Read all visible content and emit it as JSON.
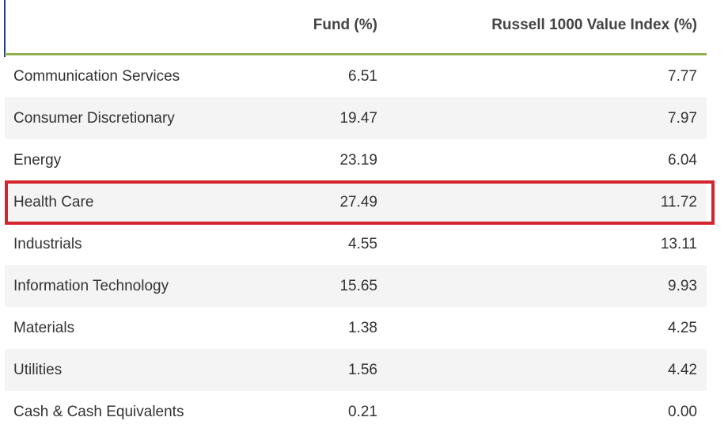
{
  "table": {
    "headers": {
      "sector": "",
      "fund": "Fund (%)",
      "index": "Russell 1000 Value Index (%)"
    },
    "rows": [
      {
        "sector": "Communication Services",
        "fund": "6.51",
        "index": "7.77"
      },
      {
        "sector": "Consumer Discretionary",
        "fund": "19.47",
        "index": "7.97"
      },
      {
        "sector": "Energy",
        "fund": "23.19",
        "index": "6.04"
      },
      {
        "sector": "Health Care",
        "fund": "27.49",
        "index": "11.72"
      },
      {
        "sector": "Industrials",
        "fund": "4.55",
        "index": "13.11"
      },
      {
        "sector": "Information Technology",
        "fund": "15.65",
        "index": "9.93"
      },
      {
        "sector": "Materials",
        "fund": "1.38",
        "index": "4.25"
      },
      {
        "sector": "Utilities",
        "fund": "1.56",
        "index": "4.42"
      },
      {
        "sector": "Cash & Cash Equivalents",
        "fund": "0.21",
        "index": "0.00"
      }
    ],
    "highlighted_row": "Health Care"
  },
  "colors": {
    "header_rule": "#8fb04a",
    "highlight_border": "#d6242d",
    "left_rule": "#2f3a87",
    "alt_row": "#f4f4f4"
  }
}
